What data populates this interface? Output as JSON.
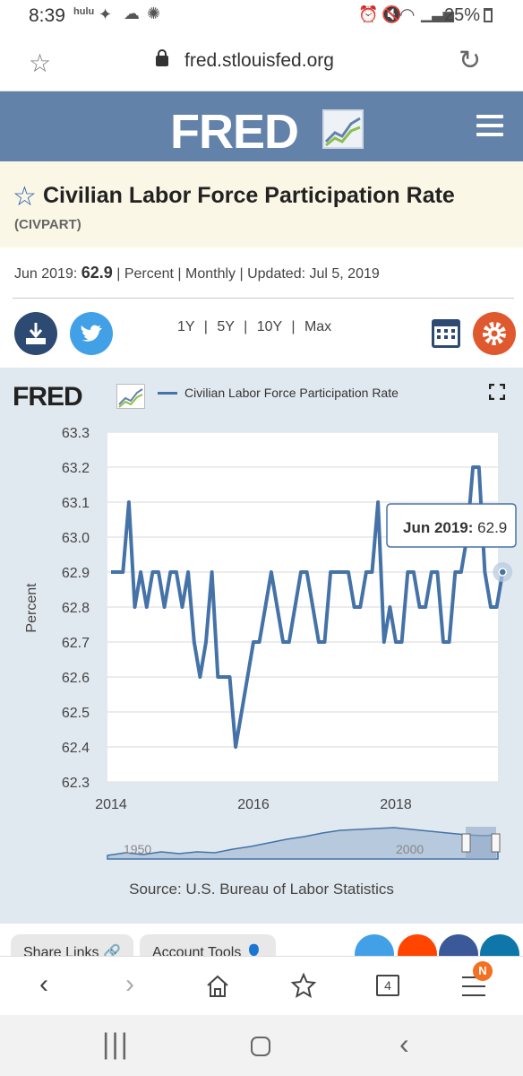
{
  "status_bar": {
    "time": "8:39",
    "notifications": "hulu",
    "battery": "25%"
  },
  "browser": {
    "url": "fred.stlouisfed.org"
  },
  "header": {
    "logo": "FRED"
  },
  "series": {
    "title": "Civilian Labor Force Participation Rate",
    "code": "(CIVPART)",
    "latest_date": "Jun 2019:",
    "latest_value": "62.9",
    "units": "| Percent | Monthly | Updated:",
    "updated": "Jul 5, 2019"
  },
  "ranges": {
    "r1": "1Y",
    "r5": "5Y",
    "r10": "10Y",
    "max": "Max",
    "sep": "|"
  },
  "chart_panel": {
    "logo": "FRED",
    "source": "Source: U.S. Bureau of Labor Statistics",
    "tooltip_date": "Jun 2019:",
    "tooltip_value": "62.9",
    "navigator_labels": [
      "1950",
      "2000"
    ]
  },
  "chart_data": {
    "type": "line",
    "ylabel": "Percent",
    "ylim": [
      62.3,
      63.3
    ],
    "yticks": [
      "63.3",
      "63.2",
      "63.1",
      "63.0",
      "62.9",
      "62.8",
      "62.7",
      "62.6",
      "62.5",
      "62.4",
      "62.3"
    ],
    "xticks": [
      "2014",
      "2016",
      "2018"
    ],
    "grid": true,
    "legend": "top",
    "series": [
      {
        "name": "Civilian Labor Force Participation Rate",
        "color": "#4572a7",
        "x_start": "2014-01",
        "frequency": "monthly",
        "values": [
          62.9,
          62.9,
          62.9,
          63.1,
          62.8,
          62.9,
          62.8,
          62.9,
          62.9,
          62.8,
          62.9,
          62.9,
          62.8,
          62.9,
          62.7,
          62.6,
          62.7,
          62.9,
          62.6,
          62.6,
          62.6,
          62.4,
          62.5,
          62.6,
          62.7,
          62.7,
          62.8,
          62.9,
          62.8,
          62.7,
          62.7,
          62.8,
          62.9,
          62.9,
          62.8,
          62.7,
          62.7,
          62.9,
          62.9,
          62.9,
          62.9,
          62.8,
          62.8,
          62.9,
          62.9,
          63.1,
          62.7,
          62.8,
          62.7,
          62.7,
          62.9,
          62.9,
          62.8,
          62.8,
          62.9,
          62.9,
          62.7,
          62.7,
          62.9,
          62.9,
          63.0,
          63.2,
          63.2,
          62.9,
          62.8,
          62.8,
          62.9
        ]
      }
    ]
  },
  "share": {
    "links": "Share Links",
    "tools": "Account Tools"
  },
  "bottom_nav": {
    "tabs_count": "4",
    "badge": "N"
  }
}
